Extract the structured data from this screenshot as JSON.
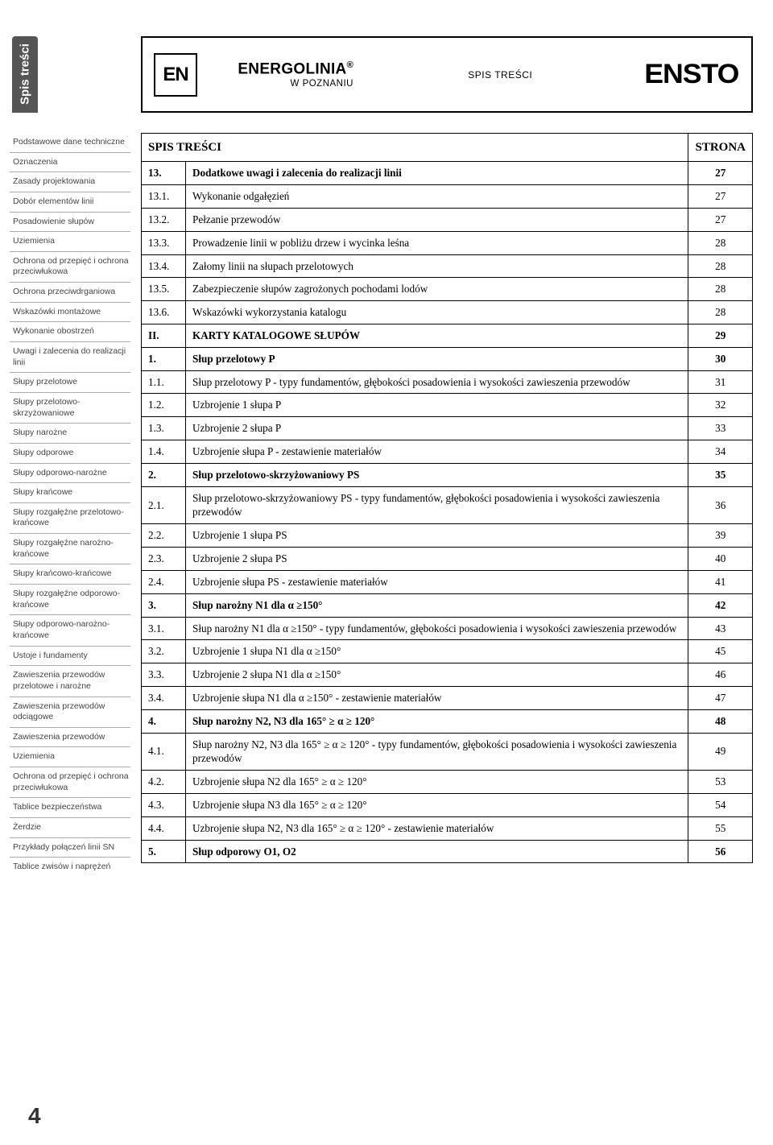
{
  "side_tab": "Spis treści",
  "header": {
    "en_logo": "EN",
    "brand": "ENERGOLINIA",
    "brand_reg": "®",
    "brand_sub": "W POZNANIU",
    "center": "SPIS TREŚCI",
    "right_logo": "ENSTO"
  },
  "sidebar_items": [
    "Podstawowe dane techniczne",
    "Oznaczenia",
    "Zasady projektowania",
    "Dobór elementów linii",
    "Posadowienie słupów",
    "Uziemienia",
    "Ochrona od przepięć i ochrona przeciwłukowa",
    "Ochrona przeciwdrganiowa",
    "Wskazówki montażowe",
    "Wykonanie obostrzeń",
    "Uwagi i zalecenia do realizacji linii",
    "Słupy przelotowe",
    "Słupy przelotowo-skrzyżowaniowe",
    "Słupy narożne",
    "Słupy odporowe",
    "Słupy odporowo-narożne",
    "Słupy krańcowe",
    "Słupy rozgałęźne przelotowo-krańcowe",
    "Słupy rozgałęźne narożno-krańcowe",
    "Słupy krańcowo-krańcowe",
    "Słupy rozgałęźne odporowo-krańcowe",
    "Słupy odporowo-narożno-krańcowe",
    "Ustoje i fundamenty",
    "Zawieszenia przewodów przelotowe i narożne",
    "Zawieszenia przewodów odciągowe",
    "Zawieszenia przewodów",
    "Uziemienia",
    "Ochrona od przepięć i ochrona przeciwłukowa",
    "Tablice bezpieczeństwa",
    "Żerdzie",
    "Przykłady połączeń linii SN",
    "Tablice zwisów i naprężeń"
  ],
  "page_number": "4",
  "table_header": {
    "title": "SPIS TREŚCI",
    "page": "STRONA"
  },
  "rows": [
    {
      "n": "13.",
      "t": "Dodatkowe uwagi i zalecenia do realizacji linii",
      "p": "27",
      "bold": true
    },
    {
      "n": "13.1.",
      "t": "Wykonanie odgałęzień",
      "p": "27"
    },
    {
      "n": "13.2.",
      "t": "Pełzanie przewodów",
      "p": "27"
    },
    {
      "n": "13.3.",
      "t": "Prowadzenie linii w pobliżu drzew i wycinka leśna",
      "p": "28"
    },
    {
      "n": "13.4.",
      "t": "Załomy linii na słupach przelotowych",
      "p": "28"
    },
    {
      "n": "13.5.",
      "t": "Zabezpieczenie słupów zagrożonych pochodami lodów",
      "p": "28"
    },
    {
      "n": "13.6.",
      "t": "Wskazówki wykorzystania katalogu",
      "p": "28"
    },
    {
      "n": "II.",
      "t": "KARTY KATALOGOWE SŁUPÓW",
      "p": "29",
      "bold": true
    },
    {
      "n": "1.",
      "t": "Słup przelotowy P",
      "p": "30",
      "bold": true
    },
    {
      "n": "1.1.",
      "t": "Słup przelotowy P - typy fundamentów, głębokości posadowienia i wysokości zawieszenia przewodów",
      "p": "31"
    },
    {
      "n": "1.2.",
      "t": "Uzbrojenie 1 słupa P",
      "p": "32"
    },
    {
      "n": "1.3.",
      "t": "Uzbrojenie 2 słupa P",
      "p": "33"
    },
    {
      "n": "1.4.",
      "t": "Uzbrojenie słupa P - zestawienie materiałów",
      "p": "34"
    },
    {
      "n": "2.",
      "t": "Słup przelotowo-skrzyżowaniowy PS",
      "p": "35",
      "bold": true
    },
    {
      "n": "2.1.",
      "t": "Słup przelotowo-skrzyżowaniowy PS - typy fundamentów, głębokości posadowienia i wysokości zawieszenia przewodów",
      "p": "36"
    },
    {
      "n": "2.2.",
      "t": "Uzbrojenie 1 słupa PS",
      "p": "39"
    },
    {
      "n": "2.3.",
      "t": "Uzbrojenie 2 słupa PS",
      "p": "40"
    },
    {
      "n": "2.4.",
      "t": "Uzbrojenie słupa PS - zestawienie materiałów",
      "p": "41"
    },
    {
      "n": "3.",
      "t": "Słup narożny N1 dla α ≥150°",
      "p": "42",
      "bold": true
    },
    {
      "n": "3.1.",
      "t": "Słup narożny N1 dla α ≥150° - typy fundamentów, głębokości posadowienia i wysokości zawieszenia przewodów",
      "p": "43"
    },
    {
      "n": "3.2.",
      "t": "Uzbrojenie 1 słupa N1 dla α ≥150°",
      "p": "45"
    },
    {
      "n": "3.3.",
      "t": "Uzbrojenie 2 słupa N1 dla α ≥150°",
      "p": "46"
    },
    {
      "n": "3.4.",
      "t": "Uzbrojenie słupa N1 dla α ≥150° - zestawienie materiałów",
      "p": "47"
    },
    {
      "n": "4.",
      "t": "Słup narożny N2, N3 dla 165° ≥ α ≥ 120°",
      "p": "48",
      "bold": true
    },
    {
      "n": "4.1.",
      "t": "Słup narożny N2, N3 dla 165° ≥ α ≥ 120° - typy fundamentów, głębokości posadowienia i wysokości zawieszenia przewodów",
      "p": "49"
    },
    {
      "n": "4.2.",
      "t": "Uzbrojenie słupa N2 dla 165° ≥ α ≥ 120°",
      "p": "53"
    },
    {
      "n": "4.3.",
      "t": "Uzbrojenie słupa N3 dla 165° ≥ α ≥ 120°",
      "p": "54"
    },
    {
      "n": "4.4.",
      "t": "Uzbrojenie słupa N2, N3 dla 165° ≥ α ≥ 120° - zestawienie materiałów",
      "p": "55"
    },
    {
      "n": "5.",
      "t": "Słup odporowy O1, O2",
      "p": "56",
      "bold": true
    }
  ]
}
